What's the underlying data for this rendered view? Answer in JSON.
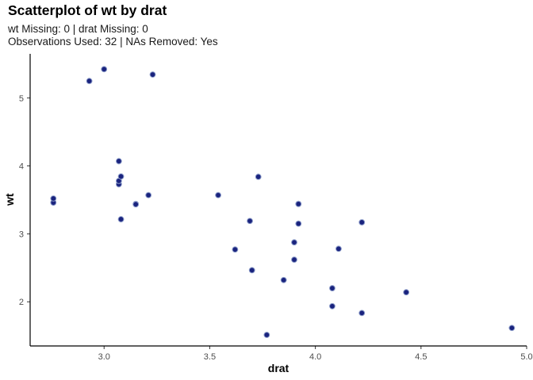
{
  "chart_data": {
    "type": "scatter",
    "title": "Scatterplot of wt by drat",
    "subtitle_lines": [
      "wt Missing: 0 | drat Missing: 0",
      "Observations Used: 32 | NAs Removed: Yes"
    ],
    "xlabel": "drat",
    "ylabel": "wt",
    "xlim": [
      2.65,
      5.0
    ],
    "ylim": [
      1.35,
      5.65
    ],
    "x_ticks": [
      3.0,
      3.5,
      4.0,
      4.5,
      5.0
    ],
    "x_tick_labels": [
      "3.0",
      "3.5",
      "4.0",
      "4.5",
      "5.0"
    ],
    "y_ticks": [
      2,
      3,
      4,
      5
    ],
    "y_tick_labels": [
      "2",
      "3",
      "4",
      "5"
    ],
    "grid": false,
    "point_fill": "#1a237e",
    "point_stroke": "#8a9ac8",
    "points": [
      {
        "x": 3.9,
        "y": 2.62
      },
      {
        "x": 3.9,
        "y": 2.875
      },
      {
        "x": 3.85,
        "y": 2.32
      },
      {
        "x": 3.08,
        "y": 3.215
      },
      {
        "x": 3.15,
        "y": 3.44
      },
      {
        "x": 2.76,
        "y": 3.46
      },
      {
        "x": 3.21,
        "y": 3.57
      },
      {
        "x": 3.69,
        "y": 3.19
      },
      {
        "x": 3.92,
        "y": 3.15
      },
      {
        "x": 3.92,
        "y": 3.44
      },
      {
        "x": 3.92,
        "y": 3.44
      },
      {
        "x": 3.07,
        "y": 4.07
      },
      {
        "x": 3.07,
        "y": 3.73
      },
      {
        "x": 3.07,
        "y": 3.78
      },
      {
        "x": 2.93,
        "y": 5.25
      },
      {
        "x": 3.0,
        "y": 5.424
      },
      {
        "x": 3.23,
        "y": 5.345
      },
      {
        "x": 4.08,
        "y": 2.2
      },
      {
        "x": 4.93,
        "y": 1.615
      },
      {
        "x": 4.22,
        "y": 1.835
      },
      {
        "x": 3.7,
        "y": 2.465
      },
      {
        "x": 2.76,
        "y": 3.52
      },
      {
        "x": 3.15,
        "y": 3.435
      },
      {
        "x": 3.73,
        "y": 3.84
      },
      {
        "x": 3.08,
        "y": 3.845
      },
      {
        "x": 4.08,
        "y": 1.935
      },
      {
        "x": 4.43,
        "y": 2.14
      },
      {
        "x": 3.77,
        "y": 1.513
      },
      {
        "x": 4.22,
        "y": 3.17
      },
      {
        "x": 3.62,
        "y": 2.77
      },
      {
        "x": 3.54,
        "y": 3.57
      },
      {
        "x": 4.11,
        "y": 2.78
      }
    ]
  }
}
